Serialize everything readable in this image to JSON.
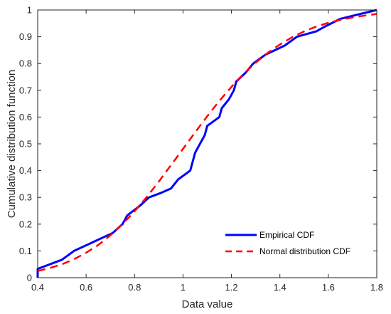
{
  "chart_data": {
    "type": "line",
    "title": "",
    "xlabel": "Data value",
    "ylabel": "Cumulative distribution function",
    "xlim": [
      0.4,
      1.8
    ],
    "ylim": [
      0,
      1
    ],
    "xticks": [
      "0.4",
      "0.6",
      "0.8",
      "1",
      "1.2",
      "1.4",
      "1.6",
      "1.8"
    ],
    "yticks": [
      "0",
      "0.1",
      "0.2",
      "0.3",
      "0.4",
      "0.5",
      "0.6",
      "0.7",
      "0.8",
      "0.9",
      "1"
    ],
    "grid": false,
    "legend_position": "bottom-right",
    "series": [
      {
        "name": "Empirical CDF",
        "style": "solid",
        "color": "#0000ff",
        "x": [
          0.4,
          0.4,
          0.5,
          0.55,
          0.71,
          0.75,
          0.77,
          0.82,
          0.86,
          0.91,
          0.95,
          0.98,
          1.03,
          1.05,
          1.09,
          1.1,
          1.15,
          1.16,
          1.19,
          1.21,
          1.22,
          1.26,
          1.29,
          1.34,
          1.42,
          1.47,
          1.55,
          1.59,
          1.65,
          1.8
        ],
        "y": [
          0.0,
          0.033,
          0.067,
          0.1,
          0.167,
          0.2,
          0.233,
          0.267,
          0.3,
          0.317,
          0.333,
          0.367,
          0.4,
          0.467,
          0.533,
          0.567,
          0.6,
          0.633,
          0.667,
          0.7,
          0.733,
          0.767,
          0.8,
          0.833,
          0.867,
          0.9,
          0.92,
          0.94,
          0.967,
          1.0
        ]
      },
      {
        "name": "Normal distribution CDF",
        "style": "dashed",
        "color": "#ff0000",
        "x": [
          0.4,
          0.45,
          0.5,
          0.55,
          0.6,
          0.65,
          0.7,
          0.75,
          0.8,
          0.85,
          0.9,
          0.95,
          1.0,
          1.05,
          1.1,
          1.15,
          1.2,
          1.25,
          1.3,
          1.35,
          1.4,
          1.45,
          1.5,
          1.55,
          1.6,
          1.65,
          1.7,
          1.75,
          1.8
        ],
        "y": [
          0.025,
          0.036,
          0.05,
          0.069,
          0.093,
          0.122,
          0.158,
          0.2,
          0.248,
          0.301,
          0.359,
          0.42,
          0.481,
          0.543,
          0.603,
          0.66,
          0.713,
          0.761,
          0.803,
          0.84,
          0.871,
          0.898,
          0.92,
          0.938,
          0.952,
          0.963,
          0.972,
          0.979,
          0.985
        ]
      }
    ]
  }
}
